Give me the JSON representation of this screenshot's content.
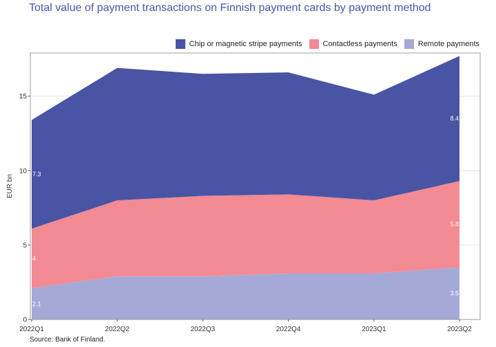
{
  "title": "Total value of payment transactions on Finnish payment cards by payment method",
  "source": "Source: Bank of Finland.",
  "colors": {
    "chip": "#4a54a5",
    "contactless": "#f28b93",
    "remote": "#a5a9d8"
  },
  "chart_data": {
    "type": "area",
    "stacked": true,
    "title": "Total value of payment transactions on Finnish payment cards by payment method",
    "ylabel": "EUR bn",
    "xlabel": "",
    "categories": [
      "2022Q1",
      "2022Q2",
      "2022Q3",
      "2022Q4",
      "2023Q1",
      "2023Q2"
    ],
    "ylim": [
      0,
      17.9
    ],
    "yticks": [
      0,
      5,
      10,
      15
    ],
    "grid": true,
    "legend_position": "top-right",
    "series": [
      {
        "name": "Remote payments",
        "values": [
          2.1,
          2.9,
          2.9,
          3.1,
          3.1,
          3.5
        ],
        "color": "#a5a9d8"
      },
      {
        "name": "Contactless payments",
        "values": [
          4.0,
          5.1,
          5.4,
          5.3,
          4.9,
          5.8
        ],
        "color": "#f28b93"
      },
      {
        "name": "Chip or magnetic stripe payments",
        "values": [
          7.3,
          8.9,
          8.2,
          8.2,
          7.1,
          8.4
        ],
        "color": "#4a54a5"
      }
    ],
    "data_labels": [
      {
        "series": "Remote payments",
        "index": 0,
        "text": "2.1"
      },
      {
        "series": "Remote payments",
        "index": 5,
        "text": "3.5"
      },
      {
        "series": "Contactless payments",
        "index": 0,
        "text": "4"
      },
      {
        "series": "Contactless payments",
        "index": 5,
        "text": "5.8"
      },
      {
        "series": "Chip or magnetic stripe payments",
        "index": 0,
        "text": "7.3"
      },
      {
        "series": "Chip or magnetic stripe payments",
        "index": 5,
        "text": "8.4"
      }
    ]
  },
  "legend": [
    {
      "label": "Chip or magnetic stripe payments",
      "color": "#4a54a5"
    },
    {
      "label": "Contactless payments",
      "color": "#f28b93"
    },
    {
      "label": "Remote payments",
      "color": "#a5a9d8"
    }
  ]
}
